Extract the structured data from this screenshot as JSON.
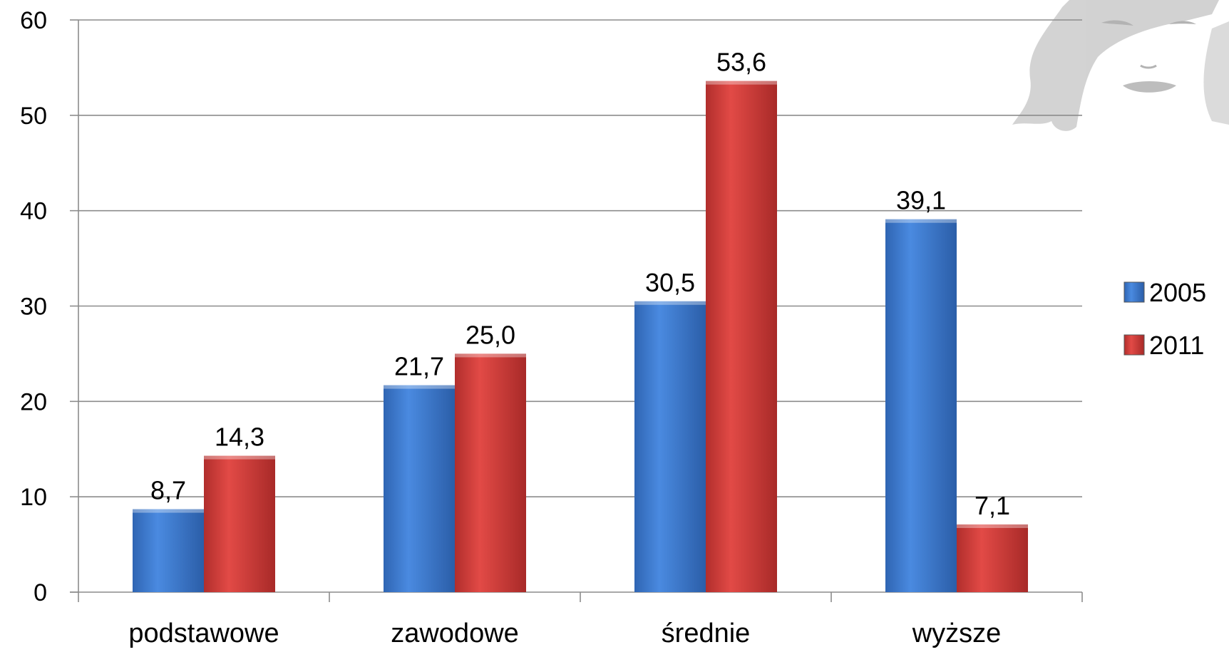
{
  "chart_data": {
    "type": "bar",
    "categories": [
      "podstawowe",
      "zawodowe",
      "średnie",
      "wyższe"
    ],
    "series": [
      {
        "name": "2005",
        "values": [
          8.7,
          21.7,
          30.5,
          39.1
        ],
        "labels": [
          "8,7",
          "21,7",
          "30,5",
          "39,1"
        ],
        "color": "#3f7fd4"
      },
      {
        "name": "2011",
        "values": [
          14.3,
          25.0,
          53.6,
          7.1
        ],
        "labels": [
          "14,3",
          "25,0",
          "53,6",
          "7,1"
        ],
        "color": "#d33f3c"
      }
    ],
    "ylim": [
      0,
      60
    ],
    "yticks": [
      "0",
      "10",
      "20",
      "30",
      "40",
      "50",
      "60"
    ],
    "grid": true,
    "legend": "right"
  }
}
